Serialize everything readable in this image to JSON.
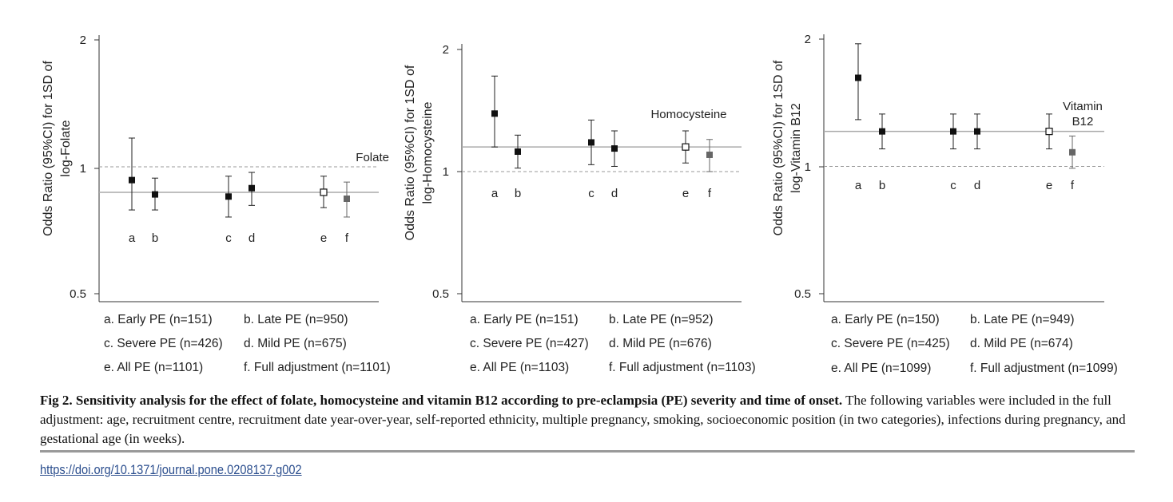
{
  "chart_data": [
    {
      "type": "scatter",
      "title": "Folate",
      "ylabel_lines": [
        "Odds Ratio (95%CI) for 1SD of",
        "log-Folate"
      ],
      "y_scale": "log",
      "ylim": [
        0.5,
        2
      ],
      "yticks": [
        "2",
        "1",
        "0.5"
      ],
      "reference_line": 1,
      "overall_line": 0.87,
      "points": [
        {
          "label": "a",
          "or": 0.93,
          "lo": 0.79,
          "hi": 1.17,
          "style": "filled"
        },
        {
          "label": "b",
          "or": 0.86,
          "lo": 0.79,
          "hi": 0.94,
          "style": "filled"
        },
        {
          "label": "c",
          "or": 0.85,
          "lo": 0.76,
          "hi": 0.95,
          "style": "filled"
        },
        {
          "label": "d",
          "or": 0.89,
          "lo": 0.81,
          "hi": 0.97,
          "style": "filled"
        },
        {
          "label": "e",
          "or": 0.87,
          "lo": 0.8,
          "hi": 0.95,
          "style": "open"
        },
        {
          "label": "f",
          "or": 0.84,
          "lo": 0.76,
          "hi": 0.92,
          "style": "grey"
        }
      ],
      "legend": [
        [
          "a. Early PE (n=151)",
          "b. Late PE (n=950)"
        ],
        [
          "c. Severe PE (n=426)",
          "d. Mild PE (n=675)"
        ],
        [
          "e.  All PE (n=1101)",
          "f. Full adjustment (n=1101)"
        ]
      ]
    },
    {
      "type": "scatter",
      "title": "Homocysteine",
      "ylabel_lines": [
        "Odds Ratio (95%CI) for 1SD of",
        "log-Homocysteine"
      ],
      "y_scale": "log",
      "ylim": [
        0.5,
        2
      ],
      "yticks": [
        "2",
        "1",
        "0.5"
      ],
      "reference_line": 1,
      "overall_line": 1.15,
      "points": [
        {
          "label": "a",
          "or": 1.39,
          "lo": 1.15,
          "hi": 1.72,
          "style": "filled"
        },
        {
          "label": "b",
          "or": 1.12,
          "lo": 1.02,
          "hi": 1.23,
          "style": "filled"
        },
        {
          "label": "c",
          "or": 1.18,
          "lo": 1.04,
          "hi": 1.34,
          "style": "filled"
        },
        {
          "label": "d",
          "or": 1.14,
          "lo": 1.03,
          "hi": 1.26,
          "style": "filled"
        },
        {
          "label": "e",
          "or": 1.15,
          "lo": 1.05,
          "hi": 1.26,
          "style": "open"
        },
        {
          "label": "f",
          "or": 1.1,
          "lo": 1.0,
          "hi": 1.2,
          "style": "grey"
        }
      ],
      "legend": [
        [
          "a. Early PE (n=151)",
          "b. Late PE (n=952)"
        ],
        [
          "c. Severe PE (n=427)",
          "d. Mild PE (n=676)"
        ],
        [
          "e.  All PE (n=1103)",
          "f. Full adjustment (n=1103)"
        ]
      ]
    },
    {
      "type": "scatter",
      "title": "Vitamin B12",
      "title_lines": [
        "Vitamin",
        "B12"
      ],
      "ylabel_lines": [
        "Odds Ratio (95%CI) for 1SD of",
        "log-Vitamin B12"
      ],
      "y_scale": "log",
      "ylim": [
        0.5,
        2
      ],
      "yticks": [
        "2",
        "1",
        "0.5"
      ],
      "reference_line": 1,
      "overall_line": 1.21,
      "points": [
        {
          "label": "a",
          "or": 1.62,
          "lo": 1.29,
          "hi": 1.95,
          "style": "filled"
        },
        {
          "label": "b",
          "or": 1.21,
          "lo": 1.1,
          "hi": 1.33,
          "style": "filled"
        },
        {
          "label": "c",
          "or": 1.21,
          "lo": 1.1,
          "hi": 1.33,
          "style": "filled"
        },
        {
          "label": "d",
          "or": 1.21,
          "lo": 1.1,
          "hi": 1.33,
          "style": "filled"
        },
        {
          "label": "e",
          "or": 1.21,
          "lo": 1.1,
          "hi": 1.33,
          "style": "open"
        },
        {
          "label": "f",
          "or": 1.08,
          "lo": 0.99,
          "hi": 1.18,
          "style": "grey"
        }
      ],
      "legend": [
        [
          "a. Early PE (n=150)",
          "b. Late PE (n=949)"
        ],
        [
          "c. Severe PE (n=425)",
          "d. Mild PE (n=674)"
        ],
        [
          "e.  All PE (n=1099)",
          "f. Full adjustment (n=1099)"
        ]
      ]
    }
  ],
  "caption": {
    "bold": "Fig 2. Sensitivity analysis for the effect of folate, homocysteine and vitamin B12 according to pre-eclampsia (PE) severity and time of onset.",
    "text": " The following variables were included in the full adjustment: age, recruitment centre, recruitment date year-over-year, self-reported ethnicity, multiple pregnancy, smoking, socioeconomic position (in two categories), infections during pregnancy, and gestational age (in weeks)."
  },
  "doi": "https://doi.org/10.1371/journal.pone.0208137.g002",
  "colors": {
    "marker": "#111111",
    "marker_adjusted": "#666666",
    "overall_line": "#aaaaaa",
    "reference_line": "#999999",
    "doi_link": "#2b4e8e"
  }
}
